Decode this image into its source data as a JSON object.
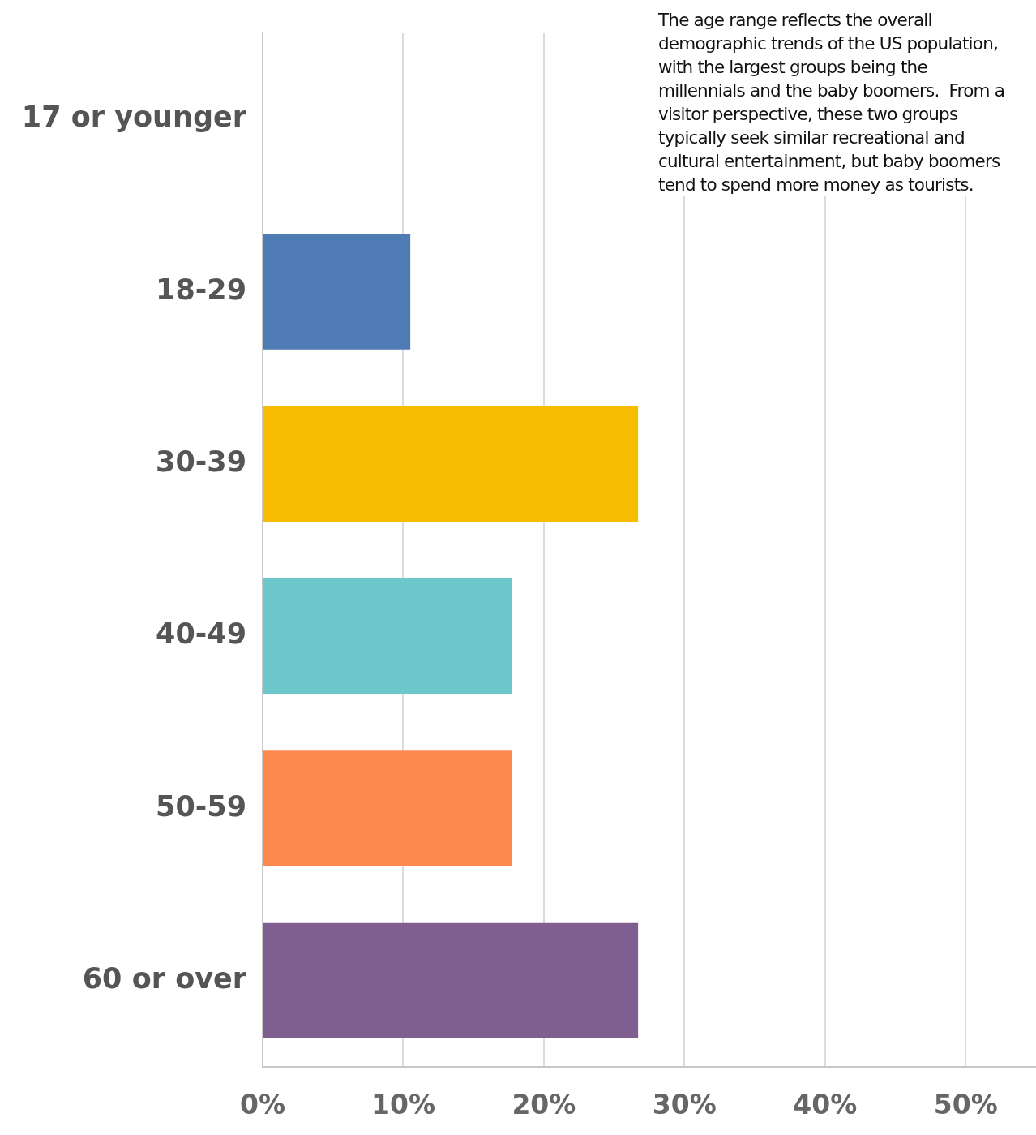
{
  "chart_data": {
    "type": "bar",
    "orientation": "horizontal",
    "categories": [
      "17 or younger",
      "18-29",
      "30-39",
      "40-49",
      "50-59",
      "60 or over"
    ],
    "values": [
      0,
      10.5,
      26.7,
      17.7,
      17.7,
      26.7
    ],
    "colors": [
      "#4f7bb5",
      "#4f7bb5",
      "#f7bd03",
      "#6cc7cb",
      "#fe8a4f",
      "#7e5f8f"
    ],
    "xlim": [
      0,
      55
    ],
    "xticks": [
      {
        "value": 0,
        "label": "0%"
      },
      {
        "value": 10,
        "label": "10%"
      },
      {
        "value": 20,
        "label": "20%"
      },
      {
        "value": 30,
        "label": "30%"
      },
      {
        "value": 40,
        "label": "40%"
      },
      {
        "value": 50,
        "label": "50%"
      }
    ],
    "grid": "x",
    "legend": false,
    "annotations": [
      "The age range reflects the overall demographic trends of the US population, with the largest groups being the millennials and the baby boomers.  From a visitor perspective, these two groups typically seek similar recreational and cultural entertainment, but baby boomers tend to spend more money as tourists."
    ]
  }
}
